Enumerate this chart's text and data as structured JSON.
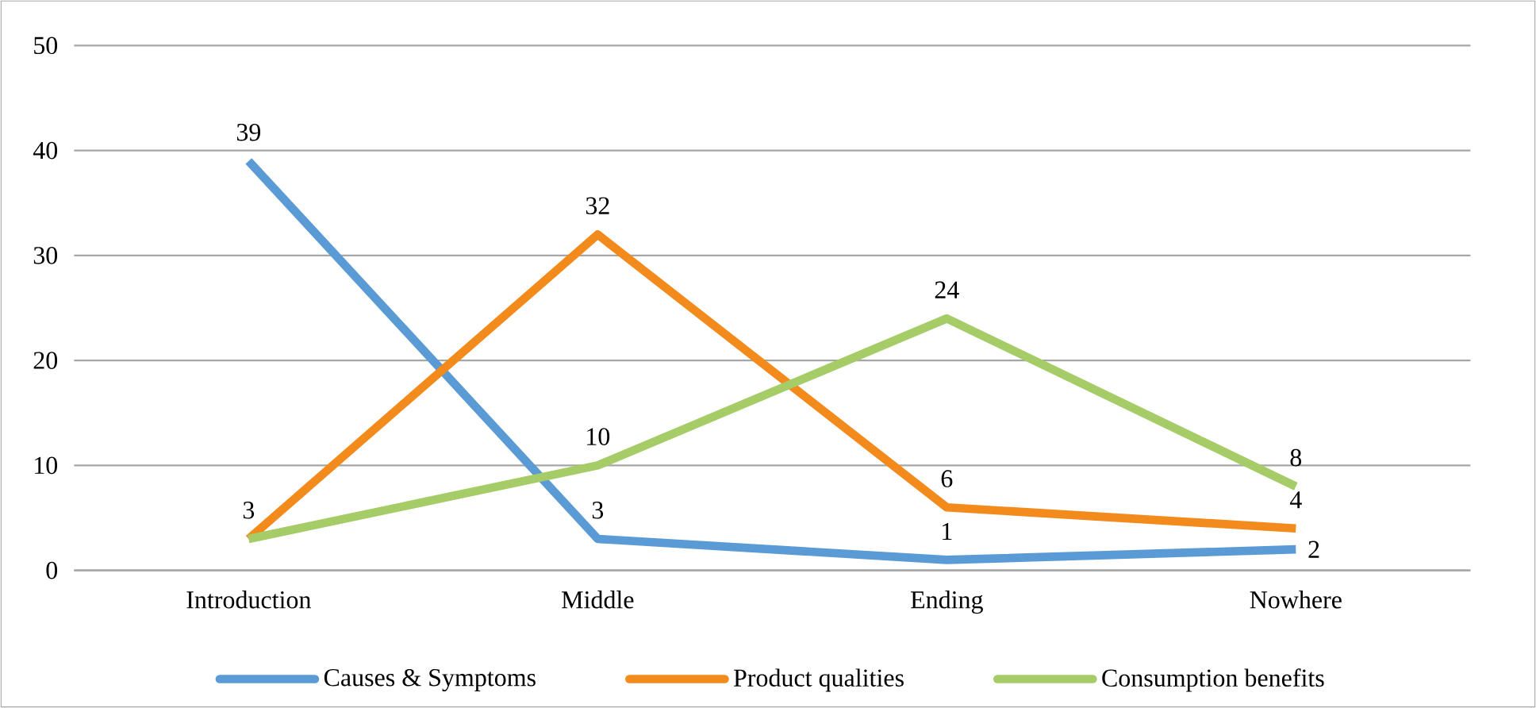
{
  "chart_data": {
    "type": "line",
    "categories": [
      "Introduction",
      "Middle",
      "Ending",
      "Nowhere"
    ],
    "series": [
      {
        "name": "Causes & Symptoms",
        "color": "#5b9bd5",
        "values": [
          39,
          3,
          1,
          2
        ],
        "value_labels": [
          "39",
          "3",
          "1",
          "2"
        ]
      },
      {
        "name": "Product qualities",
        "color": "#f28a1c",
        "values": [
          3,
          32,
          6,
          4
        ],
        "value_labels": [
          "3",
          "32",
          "6",
          "4"
        ]
      },
      {
        "name": "Consumption benefits",
        "color": "#a5cc66",
        "values": [
          3,
          10,
          24,
          8
        ],
        "value_labels": [
          null,
          "10",
          "24",
          "8"
        ]
      }
    ],
    "ylim": [
      0,
      50
    ],
    "yticks": [
      0,
      10,
      20,
      30,
      40,
      50
    ],
    "grid": "y",
    "legend": "bottom",
    "marker": "none",
    "line_style": "solid"
  }
}
